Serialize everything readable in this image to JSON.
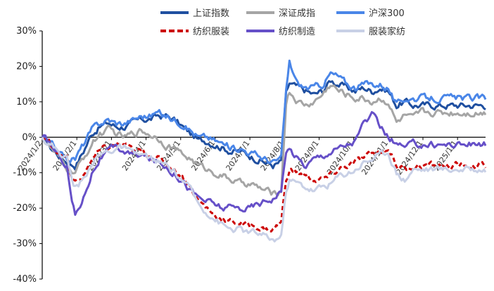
{
  "chart_data": {
    "type": "line",
    "title": "",
    "xlabel": "",
    "ylabel": "",
    "ylim": [
      -40,
      30
    ],
    "y_ticks": [
      30,
      20,
      10,
      0,
      -10,
      -20,
      -30,
      -40
    ],
    "y_tick_labels": [
      "30%",
      "20%",
      "10%",
      "0%",
      "-10%",
      "-20%",
      "-30%",
      "-40%"
    ],
    "x_tick_labels": [
      "2024/1/2",
      "2024/2/1",
      "2024/3/1",
      "2024/4/1",
      "2024/5/1",
      "2024/6/1",
      "2024/7/1",
      "2024/8/1",
      "2024/9/1",
      "2024/10/1",
      "2024/11/1",
      "2024/12/1",
      "2025/1/1"
    ],
    "x_tick_positions": [
      0,
      21,
      42,
      63,
      84,
      105,
      126,
      147,
      168,
      189,
      210,
      231,
      252
    ],
    "n_points": 270,
    "legend_position": "top",
    "grid": false,
    "series": [
      {
        "name": "上证指数",
        "color": "#1f4fa0",
        "dash": "solid",
        "width": 3,
        "keypoints": [
          [
            0,
            0
          ],
          [
            5,
            -3
          ],
          [
            10,
            -5
          ],
          [
            15,
            -7
          ],
          [
            20,
            -8
          ],
          [
            25,
            -4
          ],
          [
            30,
            1
          ],
          [
            35,
            3
          ],
          [
            40,
            4
          ],
          [
            45,
            3
          ],
          [
            50,
            3
          ],
          [
            55,
            4
          ],
          [
            60,
            5
          ],
          [
            65,
            5
          ],
          [
            70,
            6
          ],
          [
            75,
            6
          ],
          [
            80,
            5
          ],
          [
            85,
            3
          ],
          [
            90,
            1
          ],
          [
            95,
            -1
          ],
          [
            100,
            -1
          ],
          [
            105,
            -2
          ],
          [
            110,
            -3
          ],
          [
            115,
            -4
          ],
          [
            120,
            -4
          ],
          [
            125,
            -5
          ],
          [
            130,
            -6
          ],
          [
            135,
            -7
          ],
          [
            140,
            -8
          ],
          [
            145,
            -7
          ],
          [
            148,
            12
          ],
          [
            150,
            15
          ],
          [
            155,
            14
          ],
          [
            160,
            13
          ],
          [
            165,
            12
          ],
          [
            170,
            13
          ],
          [
            175,
            16
          ],
          [
            180,
            15
          ],
          [
            185,
            14
          ],
          [
            190,
            13
          ],
          [
            195,
            14
          ],
          [
            200,
            13
          ],
          [
            205,
            14
          ],
          [
            210,
            13
          ],
          [
            215,
            9
          ],
          [
            220,
            10
          ],
          [
            225,
            9
          ],
          [
            230,
            9
          ]
        ]
      },
      {
        "name": "深证成指",
        "color": "#a5a5a5",
        "dash": "solid",
        "width": 3,
        "keypoints": [
          [
            0,
            0
          ],
          [
            5,
            -3
          ],
          [
            10,
            -6
          ],
          [
            15,
            -9
          ],
          [
            20,
            -10
          ],
          [
            25,
            -6
          ],
          [
            30,
            -2
          ],
          [
            35,
            1
          ],
          [
            40,
            2
          ],
          [
            45,
            1
          ],
          [
            50,
            0
          ],
          [
            55,
            1
          ],
          [
            60,
            2
          ],
          [
            65,
            1
          ],
          [
            70,
            0
          ],
          [
            75,
            -2
          ],
          [
            80,
            -3
          ],
          [
            85,
            -5
          ],
          [
            90,
            -6
          ],
          [
            95,
            -8
          ],
          [
            100,
            -9
          ],
          [
            105,
            -10
          ],
          [
            110,
            -11
          ],
          [
            115,
            -12
          ],
          [
            120,
            -13
          ],
          [
            125,
            -13
          ],
          [
            130,
            -14
          ],
          [
            135,
            -15
          ],
          [
            140,
            -16
          ],
          [
            145,
            -15
          ],
          [
            148,
            10
          ],
          [
            150,
            13
          ],
          [
            155,
            10
          ],
          [
            160,
            9
          ],
          [
            165,
            10
          ],
          [
            170,
            12
          ],
          [
            175,
            15
          ],
          [
            180,
            13
          ],
          [
            185,
            12
          ],
          [
            190,
            11
          ],
          [
            195,
            11
          ],
          [
            200,
            10
          ],
          [
            205,
            11
          ],
          [
            210,
            10
          ],
          [
            215,
            4
          ],
          [
            220,
            6
          ],
          [
            225,
            5
          ],
          [
            230,
            7
          ]
        ]
      },
      {
        "name": "沪深300",
        "color": "#4a86e8",
        "dash": "solid",
        "width": 3,
        "keypoints": [
          [
            0,
            0
          ],
          [
            5,
            -2
          ],
          [
            10,
            -4
          ],
          [
            15,
            -6
          ],
          [
            20,
            -6
          ],
          [
            25,
            -2
          ],
          [
            30,
            2
          ],
          [
            35,
            4
          ],
          [
            40,
            5
          ],
          [
            45,
            4
          ],
          [
            50,
            4
          ],
          [
            55,
            5
          ],
          [
            60,
            6
          ],
          [
            65,
            6
          ],
          [
            70,
            7
          ],
          [
            75,
            6
          ],
          [
            80,
            5
          ],
          [
            85,
            4
          ],
          [
            90,
            2
          ],
          [
            95,
            0
          ],
          [
            100,
            0
          ],
          [
            105,
            -1
          ],
          [
            110,
            -2
          ],
          [
            115,
            -3
          ],
          [
            120,
            -3
          ],
          [
            125,
            -4
          ],
          [
            130,
            -5
          ],
          [
            135,
            -6
          ],
          [
            140,
            -7
          ],
          [
            145,
            -6
          ],
          [
            148,
            13
          ],
          [
            150,
            21
          ],
          [
            155,
            15
          ],
          [
            160,
            14
          ],
          [
            165,
            14
          ],
          [
            170,
            15
          ],
          [
            175,
            18
          ],
          [
            180,
            17
          ],
          [
            185,
            15
          ],
          [
            190,
            14
          ],
          [
            195,
            15
          ],
          [
            200,
            15
          ],
          [
            205,
            15
          ],
          [
            210,
            14
          ],
          [
            215,
            9
          ],
          [
            220,
            11
          ],
          [
            225,
            11
          ],
          [
            230,
            11
          ]
        ]
      },
      {
        "name": "纺织服装",
        "color": "#cc0000",
        "dash": "dashed",
        "width": 3,
        "keypoints": [
          [
            0,
            0
          ],
          [
            5,
            -2
          ],
          [
            10,
            -4
          ],
          [
            15,
            -6
          ],
          [
            18,
            -12
          ],
          [
            20,
            -13
          ],
          [
            25,
            -11
          ],
          [
            30,
            -6
          ],
          [
            35,
            -4
          ],
          [
            40,
            -3
          ],
          [
            45,
            -2
          ],
          [
            50,
            -2
          ],
          [
            55,
            -4
          ],
          [
            60,
            -4
          ],
          [
            65,
            -5
          ],
          [
            70,
            -6
          ],
          [
            75,
            -7
          ],
          [
            80,
            -9
          ],
          [
            85,
            -11
          ],
          [
            90,
            -14
          ],
          [
            95,
            -18
          ],
          [
            100,
            -20
          ],
          [
            105,
            -22
          ],
          [
            110,
            -23
          ],
          [
            115,
            -24
          ],
          [
            120,
            -24
          ],
          [
            125,
            -25
          ],
          [
            130,
            -25
          ],
          [
            135,
            -26
          ],
          [
            140,
            -26
          ],
          [
            145,
            -24
          ],
          [
            148,
            -12
          ],
          [
            150,
            -9
          ],
          [
            155,
            -10
          ],
          [
            160,
            -11
          ],
          [
            165,
            -12
          ],
          [
            170,
            -12
          ],
          [
            175,
            -11
          ],
          [
            180,
            -9
          ],
          [
            185,
            -8
          ],
          [
            190,
            -7
          ],
          [
            195,
            -6
          ],
          [
            200,
            -5
          ],
          [
            205,
            -4
          ],
          [
            210,
            -3
          ],
          [
            215,
            -8
          ],
          [
            220,
            -9
          ],
          [
            225,
            -8
          ],
          [
            230,
            -8
          ]
        ]
      },
      {
        "name": "纺织制造",
        "color": "#6650c8",
        "dash": "solid",
        "width": 3,
        "keypoints": [
          [
            0,
            0
          ],
          [
            5,
            -2
          ],
          [
            10,
            -5
          ],
          [
            15,
            -8
          ],
          [
            18,
            -18
          ],
          [
            20,
            -22
          ],
          [
            25,
            -17
          ],
          [
            30,
            -10
          ],
          [
            35,
            -6
          ],
          [
            40,
            -4
          ],
          [
            45,
            -3
          ],
          [
            50,
            -4
          ],
          [
            55,
            -5
          ],
          [
            60,
            -5
          ],
          [
            65,
            -6
          ],
          [
            70,
            -7
          ],
          [
            75,
            -8
          ],
          [
            80,
            -10
          ],
          [
            85,
            -12
          ],
          [
            90,
            -15
          ],
          [
            95,
            -17
          ],
          [
            100,
            -18
          ],
          [
            105,
            -19
          ],
          [
            110,
            -20
          ],
          [
            115,
            -20
          ],
          [
            120,
            -20
          ],
          [
            125,
            -20
          ],
          [
            130,
            -19
          ],
          [
            135,
            -18
          ],
          [
            140,
            -17
          ],
          [
            145,
            -15
          ],
          [
            148,
            -5
          ],
          [
            150,
            -3
          ],
          [
            155,
            -6
          ],
          [
            160,
            -8
          ],
          [
            165,
            -6
          ],
          [
            170,
            -5
          ],
          [
            175,
            -4
          ],
          [
            180,
            -3
          ],
          [
            185,
            -2
          ],
          [
            190,
            -1
          ],
          [
            195,
            4
          ],
          [
            200,
            6
          ],
          [
            205,
            3
          ],
          [
            210,
            0
          ],
          [
            215,
            -2
          ],
          [
            220,
            -3
          ],
          [
            225,
            -2
          ],
          [
            230,
            -2
          ]
        ]
      },
      {
        "name": "服装家纺",
        "color": "#c8d0e6",
        "dash": "solid",
        "width": 3,
        "keypoints": [
          [
            0,
            0
          ],
          [
            5,
            -2
          ],
          [
            10,
            -4
          ],
          [
            15,
            -6
          ],
          [
            18,
            -12
          ],
          [
            20,
            -14
          ],
          [
            25,
            -12
          ],
          [
            30,
            -7
          ],
          [
            35,
            -5
          ],
          [
            40,
            -4
          ],
          [
            45,
            -3
          ],
          [
            50,
            -3
          ],
          [
            55,
            -5
          ],
          [
            60,
            -5
          ],
          [
            65,
            -6
          ],
          [
            70,
            -7
          ],
          [
            75,
            -8
          ],
          [
            80,
            -10
          ],
          [
            85,
            -12
          ],
          [
            90,
            -15
          ],
          [
            95,
            -19
          ],
          [
            100,
            -21
          ],
          [
            105,
            -23
          ],
          [
            110,
            -25
          ],
          [
            115,
            -26
          ],
          [
            120,
            -26
          ],
          [
            125,
            -27
          ],
          [
            130,
            -27
          ],
          [
            135,
            -28
          ],
          [
            140,
            -29
          ],
          [
            145,
            -28
          ],
          [
            148,
            -15
          ],
          [
            150,
            -12
          ],
          [
            155,
            -13
          ],
          [
            160,
            -14
          ],
          [
            165,
            -15
          ],
          [
            170,
            -14
          ],
          [
            175,
            -13
          ],
          [
            180,
            -11
          ],
          [
            185,
            -10
          ],
          [
            190,
            -9
          ],
          [
            195,
            -7
          ],
          [
            200,
            -6
          ],
          [
            205,
            -5
          ],
          [
            210,
            -4
          ],
          [
            215,
            -10
          ],
          [
            220,
            -12
          ],
          [
            225,
            -9
          ],
          [
            230,
            -9
          ]
        ]
      }
    ]
  }
}
